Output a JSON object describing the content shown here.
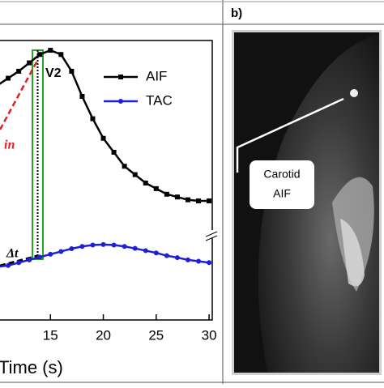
{
  "chart_data": {
    "type": "line",
    "x_label": "Time (s)",
    "x": [
      10,
      11,
      12,
      13,
      14,
      15,
      16,
      17,
      18,
      19,
      20,
      21,
      22,
      23,
      24,
      25,
      26,
      27,
      28,
      29,
      30
    ],
    "series": [
      {
        "name": "AIF",
        "color": "#000000",
        "values": [
          84,
          86.5,
          89,
          92,
          95,
          96.5,
          95,
          89,
          80,
          72,
          65,
          60,
          55,
          52,
          49,
          47,
          45,
          44,
          43,
          42.6,
          42.6
        ]
      },
      {
        "name": "TAC",
        "color": "#1f1fd6",
        "values": [
          19,
          19.5,
          20.5,
          21.5,
          22.5,
          23.5,
          24.5,
          25.5,
          26.3,
          26.8,
          27,
          26.8,
          26.3,
          25.6,
          24.8,
          24,
          23,
          22.3,
          21.5,
          21,
          20.5
        ]
      }
    ],
    "xlim": [
      10,
      30.3
    ],
    "ylim": [
      0,
      100
    ],
    "xticks": [
      15,
      20,
      25,
      30
    ],
    "annotations": [
      "V2",
      "in",
      "Δt"
    ],
    "legend": "upper right"
  },
  "panel_b": {
    "label": "b)",
    "callout": [
      "Carotid",
      "AIF"
    ]
  }
}
